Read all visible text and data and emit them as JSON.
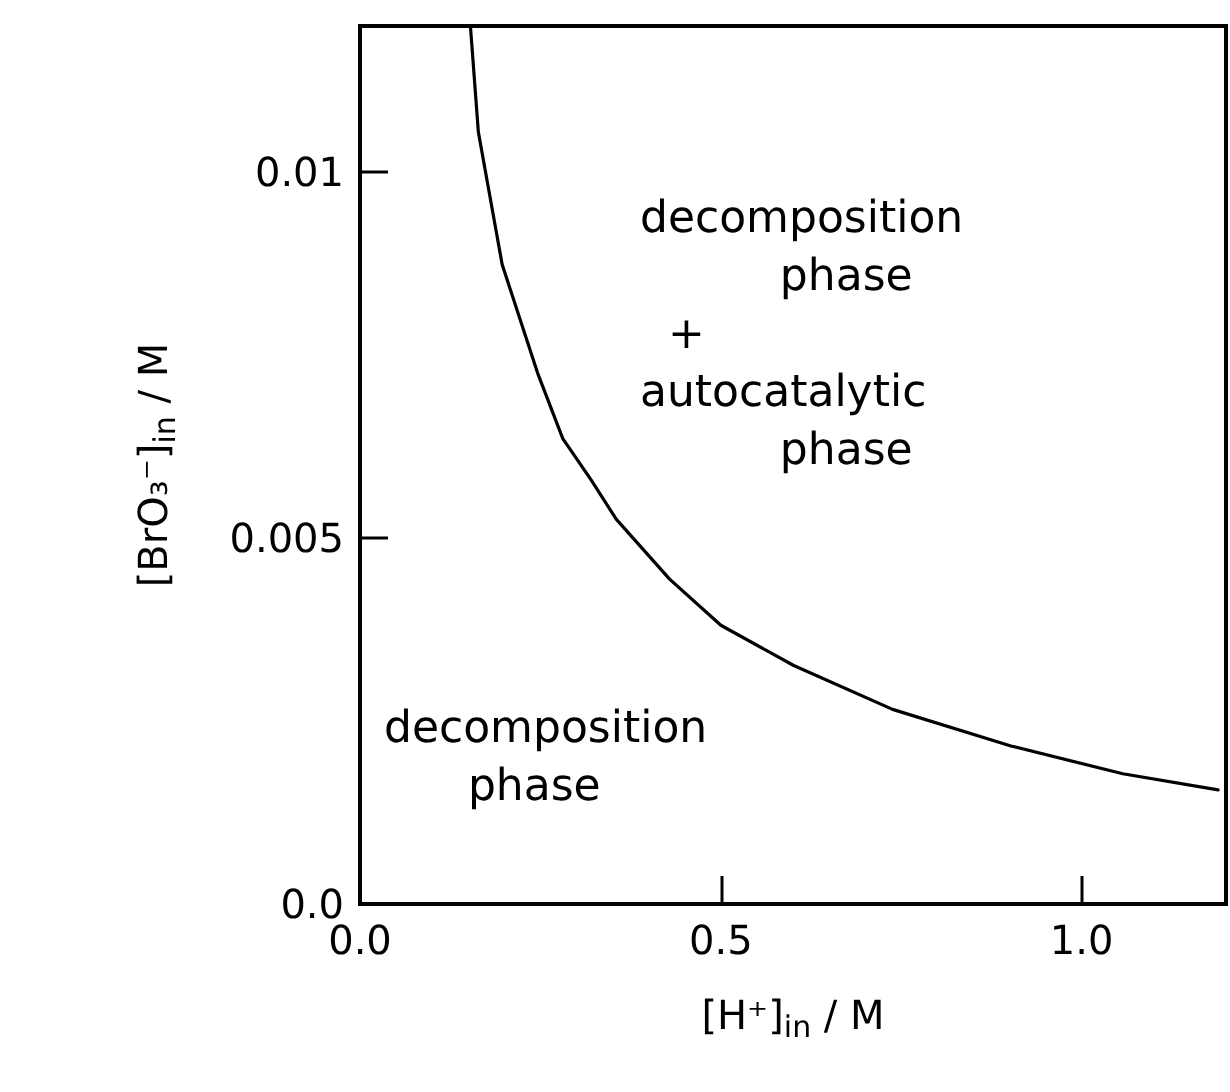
{
  "chart_data": {
    "type": "line",
    "xlabel": "[H⁺]$_{in}$ / M",
    "ylabel": "[BrO₃⁻]$_{in}$ / M",
    "annotations": [
      "decomposition\n          phase\n  +\nautocatalytic\n          phase",
      "decomposition\n      phase"
    ],
    "series": [
      {
        "color": "#000000",
        "x": [
          0.153,
          0.164,
          0.197,
          0.246,
          0.281,
          0.32,
          0.355,
          0.429,
          0.5,
          0.601,
          0.738,
          0.902,
          1.057,
          1.189
        ],
        "values": [
          0.012,
          0.01055,
          0.00874,
          0.00726,
          0.00636,
          0.0058,
          0.00526,
          0.00444,
          0.00381,
          0.00326,
          0.00266,
          0.00216,
          0.00178,
          0.00156
        ]
      }
    ],
    "xlim": [
      0,
      1.2
    ],
    "xticks": [
      {
        "value": 0,
        "label": "0.0"
      },
      {
        "value": 0.5,
        "label": "0.5"
      },
      {
        "value": 1,
        "label": "1.0"
      }
    ],
    "ylim": [
      0,
      0.012
    ],
    "yticks": [
      {
        "value": 0,
        "label": "0.0"
      },
      {
        "value": 0.005,
        "label": "0.005"
      },
      {
        "value": 0.01,
        "label": "0.01"
      }
    ],
    "grid": false,
    "marker": "none",
    "line_style": "solid"
  }
}
